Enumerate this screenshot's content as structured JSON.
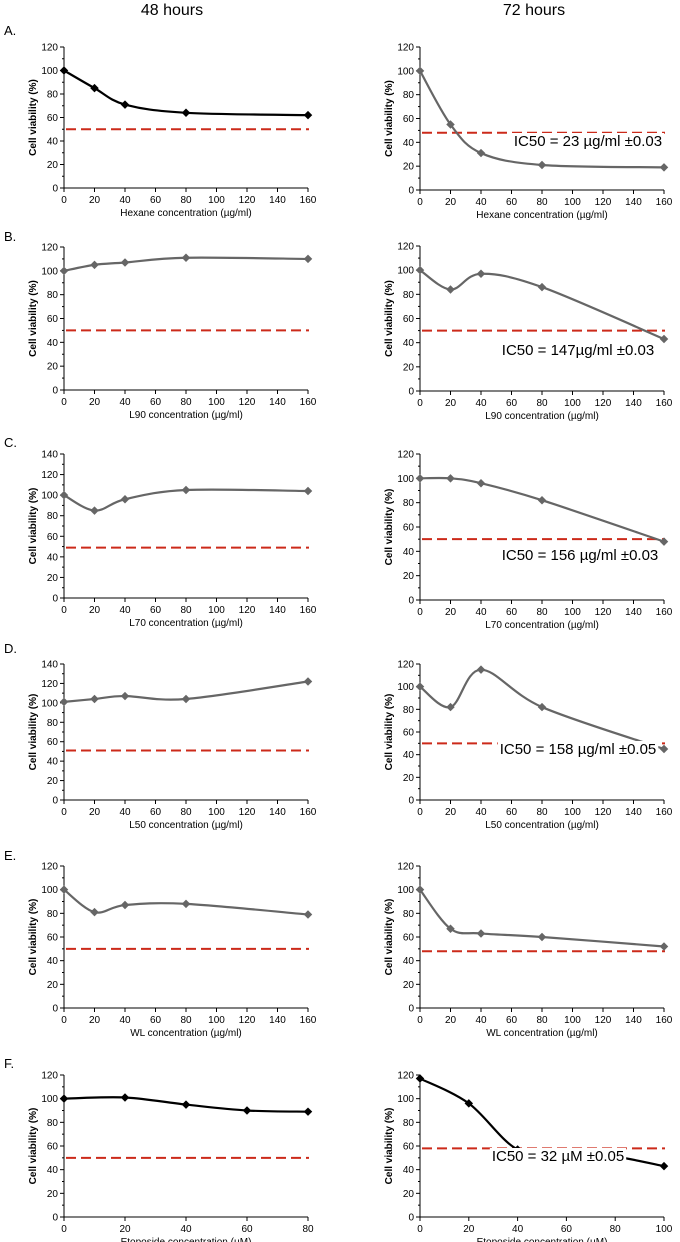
{
  "column_headers": [
    "48 hours",
    "72 hours"
  ],
  "chart_data": [
    {
      "type": "line",
      "panel": "A",
      "column": "48 hours",
      "title": "",
      "xlabel": "Hexane concentration (µg/ml)",
      "ylabel": "Cell viability (%)",
      "xlim": [
        0,
        160
      ],
      "ylim": [
        0,
        120
      ],
      "xticks": [
        0,
        20,
        40,
        60,
        80,
        100,
        120,
        140,
        160
      ],
      "yticks": [
        0,
        10,
        20,
        30,
        40,
        50,
        60,
        70,
        80,
        90,
        100,
        110,
        120
      ],
      "series": [
        {
          "name": "Hexane",
          "color": "#000000",
          "x": [
            0,
            20,
            40,
            80,
            160
          ],
          "y": [
            100,
            85,
            71,
            64,
            62
          ]
        }
      ],
      "threshold": 50,
      "annotation": ""
    },
    {
      "type": "line",
      "panel": "",
      "column": "72 hours",
      "title": "",
      "xlabel": "Hexane concentration (µg/ml)",
      "ylabel": "Cell viability (%)",
      "xlim": [
        0,
        160
      ],
      "ylim": [
        0,
        120
      ],
      "xticks": [
        0,
        20,
        40,
        60,
        80,
        100,
        120,
        140,
        160
      ],
      "yticks": [
        0,
        10,
        20,
        30,
        40,
        50,
        60,
        70,
        80,
        90,
        100,
        110,
        120
      ],
      "series": [
        {
          "name": "Hexane",
          "color": "#666666",
          "x": [
            0,
            20,
            40,
            80,
            160
          ],
          "y": [
            100,
            55,
            31,
            21,
            19
          ]
        }
      ],
      "threshold": 48,
      "annotation": "IC50 = 23 µg/ml ±0.03"
    },
    {
      "type": "line",
      "panel": "B",
      "column": "48 hours",
      "title": "",
      "xlabel": "L90 concentration (µg/ml)",
      "ylabel": "Cell viability (%)",
      "xlim": [
        0,
        160
      ],
      "ylim": [
        0,
        120
      ],
      "xticks": [
        0,
        20,
        40,
        60,
        80,
        100,
        120,
        140,
        160
      ],
      "yticks": [
        0,
        10,
        20,
        30,
        40,
        50,
        60,
        70,
        80,
        90,
        100,
        110,
        120
      ],
      "series": [
        {
          "name": "L90",
          "color": "#666666",
          "x": [
            0,
            20,
            40,
            80,
            160
          ],
          "y": [
            100,
            105,
            107,
            111,
            110
          ]
        }
      ],
      "threshold": 50,
      "annotation": ""
    },
    {
      "type": "line",
      "panel": "",
      "column": "72 hours",
      "title": "",
      "xlabel": "L90 concentration (µg/ml)",
      "ylabel": "Cell viability (%)",
      "xlim": [
        0,
        160
      ],
      "ylim": [
        0,
        120
      ],
      "xticks": [
        0,
        20,
        40,
        60,
        80,
        100,
        120,
        140,
        160
      ],
      "yticks": [
        0,
        10,
        20,
        30,
        40,
        50,
        60,
        70,
        80,
        90,
        100,
        110,
        120
      ],
      "series": [
        {
          "name": "L90",
          "color": "#666666",
          "x": [
            0,
            20,
            40,
            80,
            160
          ],
          "y": [
            100,
            84,
            97,
            86,
            43
          ]
        }
      ],
      "threshold": 50,
      "annotation": "IC50 = 147µg/ml ±0.03"
    },
    {
      "type": "line",
      "panel": "C",
      "column": "48 hours",
      "title": "",
      "xlabel": "L70 concentration (µg/ml)",
      "ylabel": "Cell viability (%)",
      "xlim": [
        0,
        160
      ],
      "ylim": [
        0,
        140
      ],
      "xticks": [
        0,
        20,
        40,
        60,
        80,
        100,
        120,
        140,
        160
      ],
      "yticks": [
        0,
        10,
        20,
        30,
        40,
        50,
        60,
        70,
        80,
        90,
        100,
        110,
        120,
        130,
        140
      ],
      "series": [
        {
          "name": "L70",
          "color": "#666666",
          "x": [
            0,
            20,
            40,
            80,
            160
          ],
          "y": [
            100,
            85,
            96,
            105,
            104
          ]
        }
      ],
      "threshold": 49,
      "annotation": ""
    },
    {
      "type": "line",
      "panel": "",
      "column": "72 hours",
      "title": "",
      "xlabel": "L70 concentration (µg/ml)",
      "ylabel": "Cell viability (%)",
      "xlim": [
        0,
        160
      ],
      "ylim": [
        0,
        120
      ],
      "xticks": [
        0,
        20,
        40,
        60,
        80,
        100,
        120,
        140,
        160
      ],
      "yticks": [
        0,
        10,
        20,
        30,
        40,
        50,
        60,
        70,
        80,
        90,
        100,
        110,
        120
      ],
      "series": [
        {
          "name": "L70",
          "color": "#666666",
          "x": [
            0,
            20,
            40,
            80,
            160
          ],
          "y": [
            100,
            100,
            96,
            82,
            48
          ]
        }
      ],
      "threshold": 50,
      "annotation": "IC50 = 156 µg/ml ±0.03"
    },
    {
      "type": "line",
      "panel": "D",
      "column": "48 hours",
      "title": "",
      "xlabel": "L50 concentration (µg/ml)",
      "ylabel": "Cell viability (%)",
      "xlim": [
        0,
        160
      ],
      "ylim": [
        0,
        140
      ],
      "xticks": [
        0,
        20,
        40,
        60,
        80,
        100,
        120,
        140,
        160
      ],
      "yticks": [
        0,
        10,
        20,
        30,
        40,
        50,
        60,
        70,
        80,
        90,
        100,
        110,
        120,
        130,
        140
      ],
      "series": [
        {
          "name": "L50",
          "color": "#666666",
          "x": [
            0,
            20,
            40,
            80,
            160
          ],
          "y": [
            101,
            104,
            107,
            104,
            122
          ]
        }
      ],
      "threshold": 51,
      "annotation": ""
    },
    {
      "type": "line",
      "panel": "",
      "column": "72 hours",
      "title": "",
      "xlabel": "L50 concentration (µg/ml)",
      "ylabel": "Cell viability (%)",
      "xlim": [
        0,
        160
      ],
      "ylim": [
        0,
        120
      ],
      "xticks": [
        0,
        20,
        40,
        60,
        80,
        100,
        120,
        140,
        160
      ],
      "yticks": [
        0,
        10,
        20,
        30,
        40,
        50,
        60,
        70,
        80,
        90,
        100,
        110,
        120
      ],
      "series": [
        {
          "name": "L50",
          "color": "#666666",
          "x": [
            0,
            20,
            40,
            80,
            160
          ],
          "y": [
            100,
            82,
            115,
            82,
            45
          ]
        }
      ],
      "threshold": 50,
      "annotation": "IC50 = 158 µg/ml ±0.05"
    },
    {
      "type": "line",
      "panel": "E",
      "column": "48 hours",
      "title": "",
      "xlabel": "WL concentration (µg/ml)",
      "ylabel": "Cell viability (%)",
      "xlim": [
        0,
        160
      ],
      "ylim": [
        0,
        120
      ],
      "xticks": [
        0,
        20,
        40,
        60,
        80,
        100,
        120,
        140,
        160
      ],
      "yticks": [
        0,
        10,
        20,
        30,
        40,
        50,
        60,
        70,
        80,
        90,
        100,
        110,
        120
      ],
      "series": [
        {
          "name": "WL",
          "color": "#666666",
          "x": [
            0,
            20,
            40,
            80,
            160
          ],
          "y": [
            100,
            81,
            87,
            88,
            79
          ]
        }
      ],
      "threshold": 50,
      "annotation": ""
    },
    {
      "type": "line",
      "panel": "",
      "column": "72 hours",
      "title": "",
      "xlabel": "WL concentration (µg/ml)",
      "ylabel": "Cell viability (%)",
      "xlim": [
        0,
        160
      ],
      "ylim": [
        0,
        120
      ],
      "xticks": [
        0,
        20,
        40,
        60,
        80,
        100,
        120,
        140,
        160
      ],
      "yticks": [
        0,
        10,
        20,
        30,
        40,
        50,
        60,
        70,
        80,
        90,
        100,
        110,
        120
      ],
      "series": [
        {
          "name": "WL",
          "color": "#666666",
          "x": [
            0,
            20,
            40,
            80,
            160
          ],
          "y": [
            100,
            67,
            63,
            60,
            52
          ]
        }
      ],
      "threshold": 48,
      "annotation": ""
    },
    {
      "type": "line",
      "panel": "F",
      "column": "48 hours",
      "title": "",
      "xlabel": "Etoposide concentration (µM)",
      "ylabel": "Cell viability (%)",
      "xlim": [
        0,
        80
      ],
      "ylim": [
        0,
        120
      ],
      "xticks": [
        0,
        20,
        40,
        60,
        80
      ],
      "yticks": [
        0,
        10,
        20,
        30,
        40,
        50,
        60,
        70,
        80,
        90,
        100,
        110,
        120
      ],
      "series": [
        {
          "name": "Etoposide",
          "color": "#000000",
          "x": [
            0,
            20,
            40,
            60,
            80
          ],
          "y": [
            100,
            101,
            95,
            90,
            89
          ]
        }
      ],
      "threshold": 50,
      "annotation": ""
    },
    {
      "type": "line",
      "panel": "",
      "column": "72 hours",
      "title": "",
      "xlabel": "Etoposide concentration (µM)",
      "ylabel": "Cell viability (%)",
      "xlim": [
        0,
        100
      ],
      "ylim": [
        0,
        120
      ],
      "xticks": [
        0,
        20,
        40,
        60,
        80,
        100
      ],
      "yticks": [
        0,
        10,
        20,
        30,
        40,
        50,
        60,
        70,
        80,
        90,
        100,
        110,
        120
      ],
      "series": [
        {
          "name": "Etoposide",
          "color": "#000000",
          "x": [
            0,
            20,
            40,
            60,
            80,
            100
          ],
          "y": [
            117,
            96,
            57,
            54,
            51,
            43
          ]
        }
      ],
      "threshold": 58,
      "annotation": "IC50 = 32 µM ±0.05"
    }
  ]
}
